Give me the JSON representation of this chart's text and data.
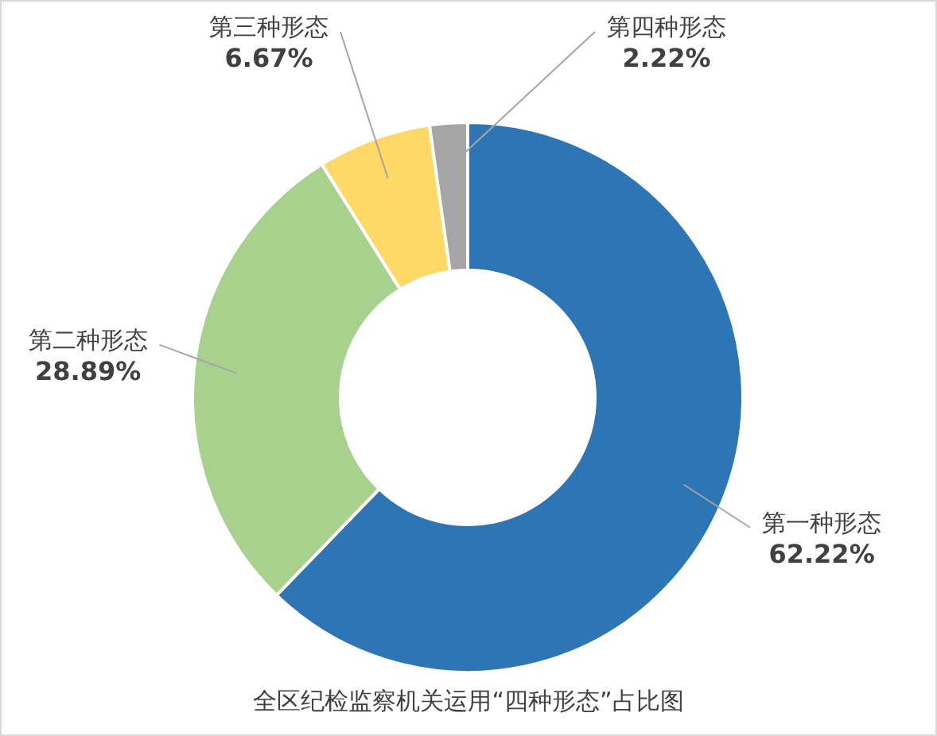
{
  "chart_data": {
    "type": "donut",
    "title": "全区纪检监察机关运用“四种形态”占比图",
    "categories": [
      "第一种形态",
      "第二种形态",
      "第三种形态",
      "第四种形态"
    ],
    "values": [
      62.22,
      28.89,
      6.67,
      2.22
    ],
    "colors": [
      "#2e75b6",
      "#a9d18e",
      "#ffd966",
      "#a5a5a5"
    ],
    "value_labels": [
      "62.22%",
      "28.89%",
      "6.67%",
      "2.22%"
    ],
    "legend": false
  }
}
